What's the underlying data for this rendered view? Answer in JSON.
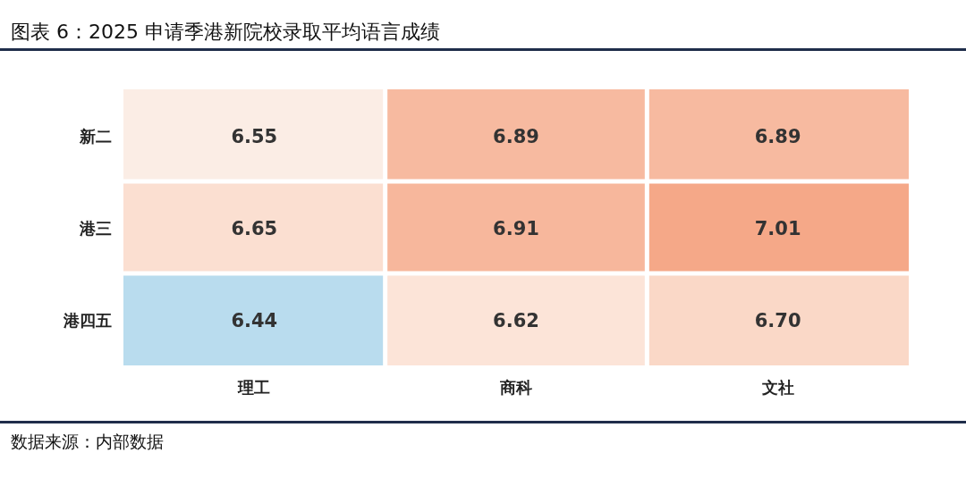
{
  "chart_data": {
    "type": "heatmap",
    "title": "图表 6：2025 申请季港新院校录取平均语言成绩",
    "categories": [
      "理工",
      "商科",
      "文社"
    ],
    "y_categories": [
      "新二",
      "港三",
      "港四五"
    ],
    "cells": [
      [
        6.55,
        6.89,
        6.89
      ],
      [
        6.65,
        6.91,
        7.01
      ],
      [
        6.44,
        6.62,
        6.7
      ]
    ],
    "data_labels": true,
    "cell_labels": [
      [
        "6.55",
        "6.89",
        "6.89"
      ],
      [
        "6.65",
        "6.91",
        "7.01"
      ],
      [
        "6.44",
        "6.62",
        "6.70"
      ]
    ],
    "annotations": [
      "数据来源：内部数据"
    ]
  }
}
